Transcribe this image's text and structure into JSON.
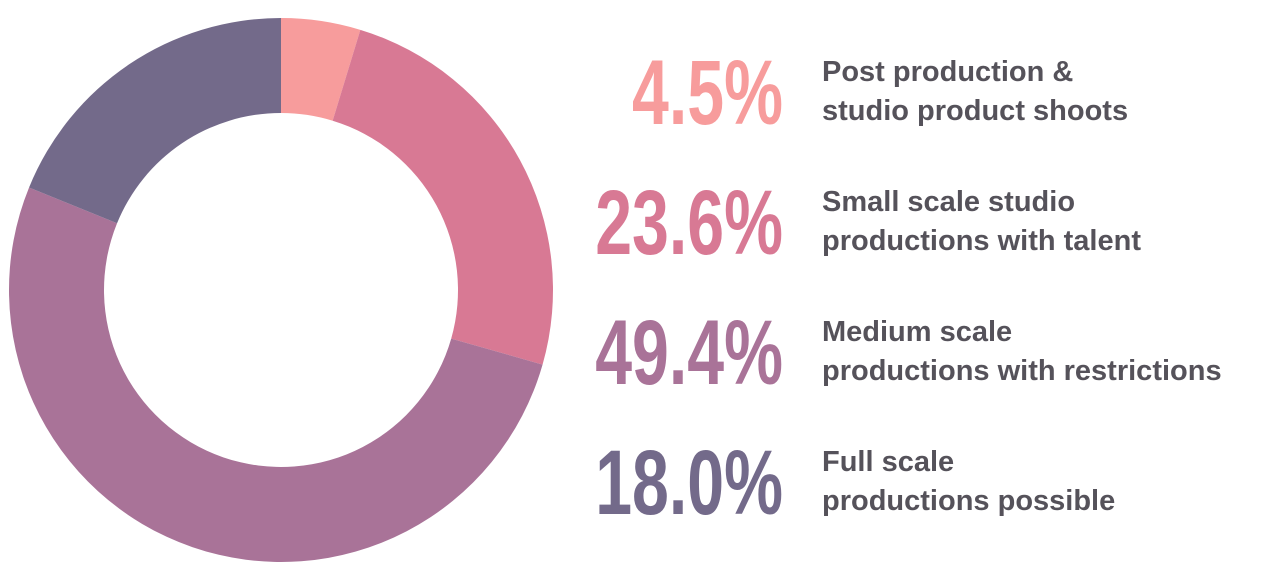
{
  "chart_data": {
    "type": "donut",
    "categories": [
      [
        "Post production &",
        "studio product shoots"
      ],
      [
        "Small scale studio",
        "productions with talent"
      ],
      [
        "Medium scale",
        "productions with restrictions"
      ],
      [
        "Full scale",
        "productions possible"
      ]
    ],
    "values": [
      4.5,
      23.6,
      49.4,
      18.0
    ],
    "value_labels": [
      "4.5%",
      "23.6%",
      "49.4%",
      "18.0%"
    ],
    "colors": [
      "#f79c9c",
      "#d87994",
      "#a97398",
      "#736a8a"
    ]
  }
}
